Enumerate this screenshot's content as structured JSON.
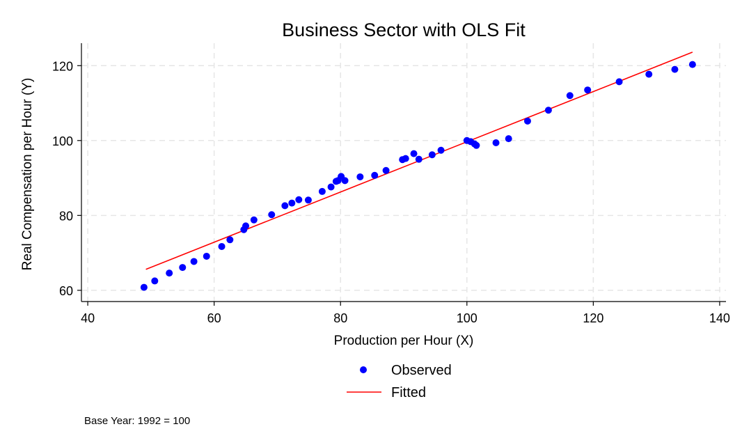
{
  "chart_data": {
    "type": "scatter",
    "title": "Business Sector with OLS Fit",
    "xlabel": "Production per Hour (X)",
    "ylabel": "Real Compensation per Hour (Y)",
    "xlim": [
      39,
      141
    ],
    "ylim": [
      57,
      126
    ],
    "x_ticks": [
      40,
      60,
      80,
      100,
      120,
      140
    ],
    "y_ticks": [
      60,
      80,
      100,
      120
    ],
    "grid": true,
    "legend_position": "bottom",
    "note": "Base Year: 1992 = 100",
    "series": [
      {
        "name": "Observed",
        "type": "scatter",
        "color": "#0000ff",
        "points": [
          [
            48.9,
            60.8
          ],
          [
            50.6,
            62.5
          ],
          [
            52.9,
            64.6
          ],
          [
            55.0,
            66.1
          ],
          [
            56.8,
            67.7
          ],
          [
            58.8,
            69.1
          ],
          [
            61.2,
            71.7
          ],
          [
            62.5,
            73.5
          ],
          [
            64.7,
            76.2
          ],
          [
            65.0,
            77.2
          ],
          [
            66.3,
            78.8
          ],
          [
            69.1,
            80.2
          ],
          [
            71.2,
            82.6
          ],
          [
            72.3,
            83.3
          ],
          [
            73.4,
            84.2
          ],
          [
            74.9,
            84.1
          ],
          [
            77.1,
            86.4
          ],
          [
            78.5,
            87.6
          ],
          [
            79.3,
            89.1
          ],
          [
            79.6,
            89.3
          ],
          [
            80.1,
            90.4
          ],
          [
            80.7,
            89.3
          ],
          [
            83.1,
            90.3
          ],
          [
            85.4,
            90.7
          ],
          [
            87.2,
            92.0
          ],
          [
            89.8,
            94.9
          ],
          [
            90.3,
            95.2
          ],
          [
            91.6,
            96.5
          ],
          [
            92.4,
            95.0
          ],
          [
            94.5,
            96.2
          ],
          [
            95.9,
            97.4
          ],
          [
            100.0,
            100.0
          ],
          [
            100.6,
            99.7
          ],
          [
            101.2,
            99.1
          ],
          [
            101.5,
            98.7
          ],
          [
            104.6,
            99.4
          ],
          [
            106.6,
            100.5
          ],
          [
            109.6,
            105.2
          ],
          [
            112.9,
            108.1
          ],
          [
            116.3,
            112.0
          ],
          [
            119.1,
            113.5
          ],
          [
            124.1,
            115.7
          ],
          [
            128.8,
            117.7
          ],
          [
            132.9,
            119.0
          ],
          [
            135.7,
            120.3
          ]
        ]
      },
      {
        "name": "Fitted",
        "type": "line",
        "color": "#ff0000",
        "points": [
          [
            49.2,
            65.6
          ],
          [
            135.7,
            123.6
          ]
        ]
      }
    ]
  }
}
